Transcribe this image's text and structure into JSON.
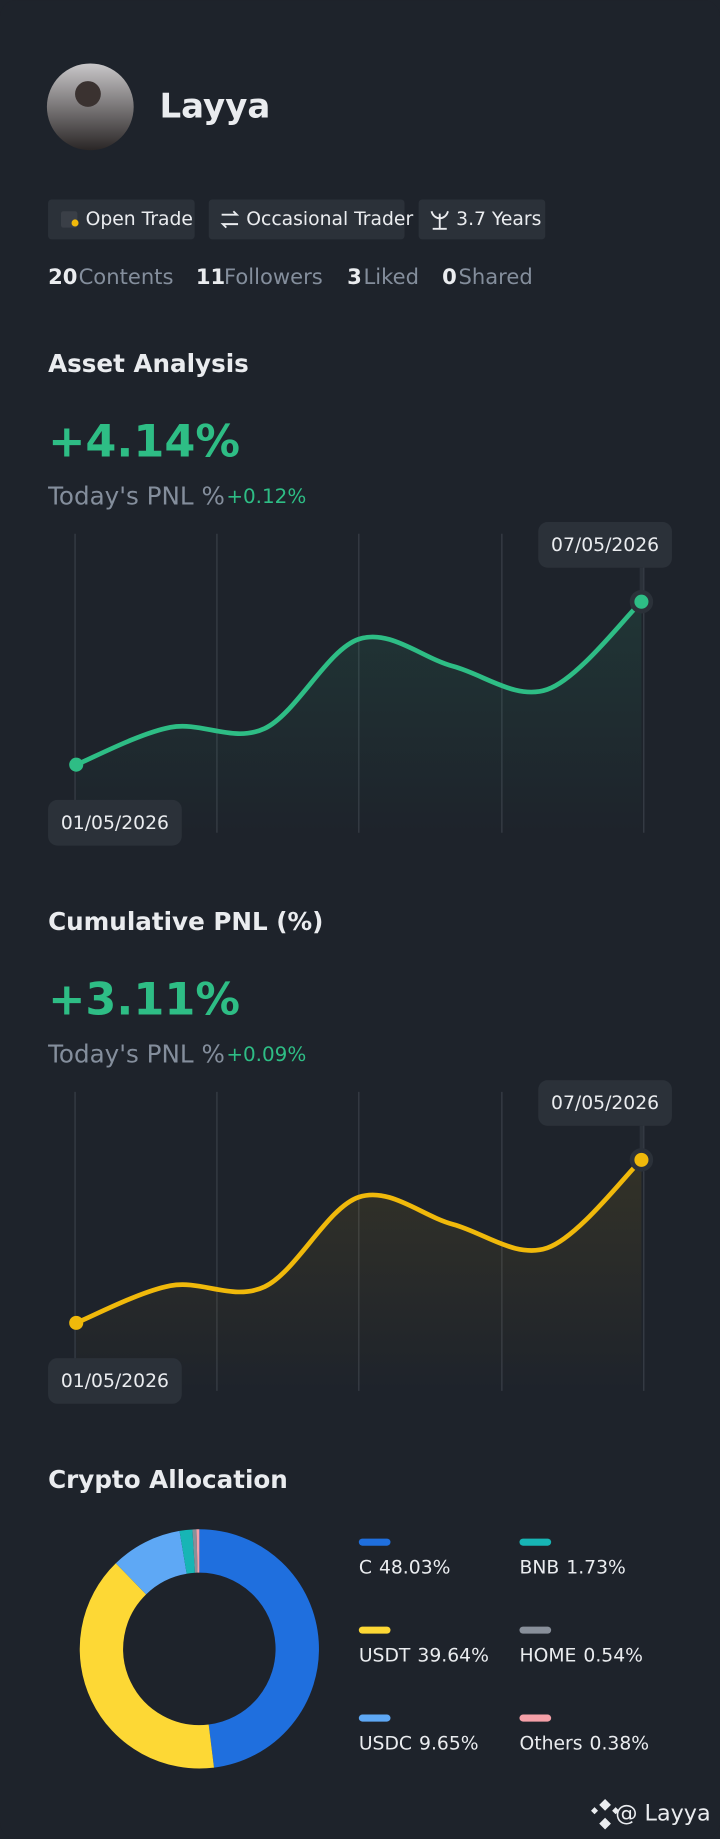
{
  "profile": {
    "name": "Layya",
    "tags": [
      "Open Trade",
      "Occasional Trader",
      "3.7 Years"
    ],
    "stats": [
      {
        "count": 20,
        "label": "Contents"
      },
      {
        "count": 11,
        "label": "Followers"
      },
      {
        "count": 3,
        "label": "Liked"
      },
      {
        "count": 0,
        "label": "Shared"
      }
    ]
  },
  "asset_analysis": {
    "title": "Asset Analysis",
    "headline": "+4.14%",
    "pnl_label": "Today's PNL %",
    "pnl_value": "+0.12%",
    "chart": {
      "type": "line",
      "color": "#2ebd85",
      "start_label": "01/05/2026",
      "end_label": "07/05/2026",
      "values": [
        0,
        0.95,
        0.92,
        3.19,
        2.5,
        1.91,
        4.14
      ]
    }
  },
  "cumulative_pnl": {
    "title": "Cumulative PNL (%)",
    "headline": "+3.11%",
    "pnl_label": "Today's PNL %",
    "pnl_value": "+0.09%",
    "chart": {
      "type": "line",
      "color": "#f0b90b",
      "start_label": "01/05/2026",
      "end_label": "07/05/2026",
      "values": [
        0,
        0.71,
        0.69,
        2.4,
        1.88,
        1.43,
        3.11
      ]
    }
  },
  "crypto_allocation": {
    "title": "Crypto Allocation",
    "chart": {
      "type": "donut",
      "categories": [
        "C",
        "USDT",
        "USDC",
        "BNB",
        "HOME",
        "Others"
      ],
      "values": [
        48.03,
        39.64,
        9.65,
        1.73,
        0.54,
        0.38
      ],
      "value_labels": [
        "48.03%",
        "39.64%",
        "9.65%",
        "1.73%",
        "0.54%",
        "0.38%"
      ],
      "colors": [
        "#1f6fde",
        "#fdd835",
        "#5ea8f5",
        "#17b5b5",
        "#888f9a",
        "#f5a0a8"
      ]
    }
  },
  "footer": {
    "handle": "@ Layya"
  }
}
